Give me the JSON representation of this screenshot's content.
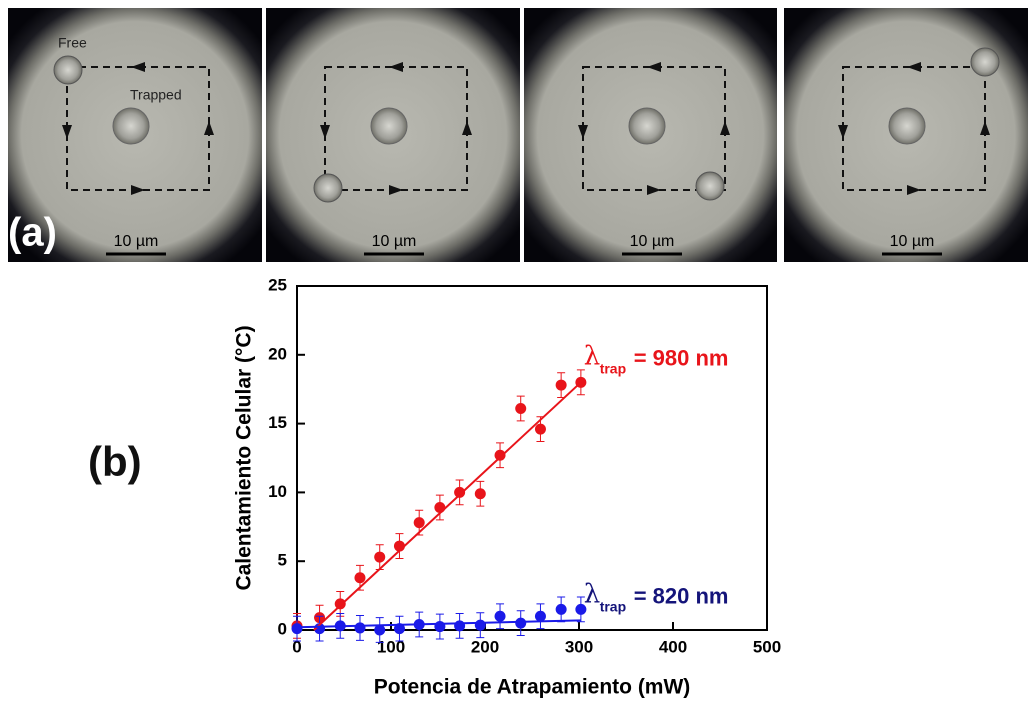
{
  "panel_a": {
    "label": "(a)",
    "free_label": "Free",
    "trapped_label": "Trapped",
    "scale_bars": [
      "10 µm",
      "10 µm",
      "10 µm",
      "10 µm"
    ]
  },
  "panel_b": {
    "label": "(b)"
  },
  "chart_data": {
    "type": "scatter",
    "xlabel": "Potencia de Atrapamiento (mW)",
    "ylabel": "Calentamiento Celular (°C)",
    "xlim": [
      0,
      500
    ],
    "ylim": [
      0,
      25
    ],
    "xticks": [
      0,
      100,
      200,
      300,
      400,
      500
    ],
    "yticks": [
      0,
      5,
      10,
      15,
      20,
      25
    ],
    "series": [
      {
        "color": "#e8141a",
        "x": [
          0,
          24,
          46,
          67,
          88,
          109,
          130,
          152,
          173,
          195,
          216,
          238,
          259,
          281,
          302
        ],
        "values": [
          0.3,
          0.9,
          1.9,
          3.8,
          5.3,
          6.1,
          7.8,
          8.9,
          10.0,
          9.9,
          12.7,
          16.1,
          14.6,
          17.8,
          18.0
        ],
        "errors": [
          0.9,
          0.9,
          0.9,
          0.9,
          0.9,
          0.9,
          0.9,
          0.9,
          0.9,
          0.9,
          0.9,
          0.9,
          0.9,
          0.9,
          0.9
        ]
      },
      {
        "color": "#1a1ae8",
        "x": [
          0,
          24,
          46,
          67,
          88,
          109,
          130,
          152,
          173,
          195,
          216,
          238,
          259,
          281,
          302
        ],
        "values": [
          0.1,
          0.1,
          0.3,
          0.15,
          0,
          0.1,
          0.4,
          0.25,
          0.3,
          0.35,
          1.0,
          0.5,
          1.0,
          1.5,
          1.5
        ],
        "errors": [
          0.9,
          0.9,
          0.9,
          0.9,
          0.9,
          0.9,
          0.9,
          0.9,
          0.9,
          0.9,
          0.9,
          0.9,
          0.9,
          0.9,
          0.9
        ]
      },
      {
        "color": "#e8141a",
        "mode": "line",
        "x": [
          18,
          302
        ],
        "values": [
          0,
          18
        ]
      },
      {
        "color": "#1a1ae8",
        "mode": "line",
        "x": [
          0,
          302
        ],
        "values": [
          0.2,
          0.7
        ]
      }
    ],
    "annotations": [
      {
        "symbol": "λ",
        "subscript": "trap",
        "text": "= 980 nm",
        "color": "#e8141a",
        "x": 305,
        "y": 19.8
      },
      {
        "symbol": "λ",
        "subscript": "trap",
        "text": "= 820 nm",
        "color": "#14147a",
        "x": 305,
        "y": 2.5
      }
    ]
  }
}
